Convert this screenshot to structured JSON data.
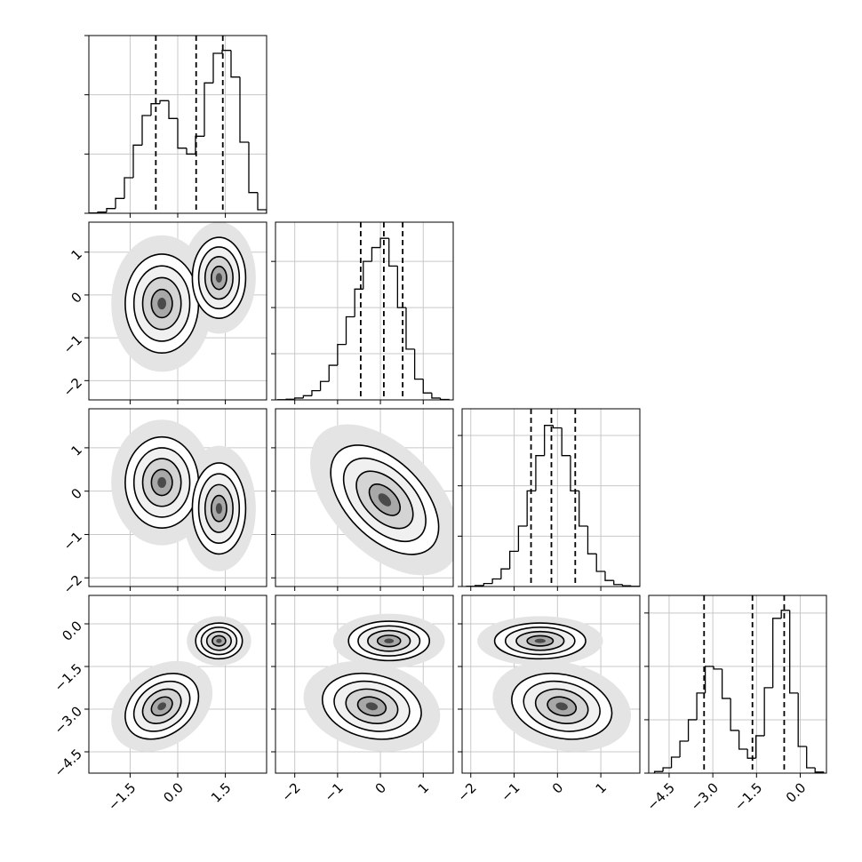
{
  "chart_data": [
    {
      "type": "histogram",
      "color": "#000000",
      "bins": [
        -2.8,
        -2.52,
        -2.24,
        -1.96,
        -1.68,
        -1.4,
        -1.12,
        -0.84,
        -0.56,
        -0.28,
        0,
        0.28,
        0.56,
        0.84,
        1.12,
        1.4,
        1.68,
        1.96,
        2.24,
        2.52,
        2.8
      ],
      "values": [
        5,
        20,
        80,
        250,
        600,
        1150,
        1650,
        1850,
        1900,
        1600,
        1100,
        1000,
        1300,
        2200,
        2700,
        2750,
        2300,
        1200,
        350,
        60
      ],
      "quantiles": [
        -0.69,
        0.58,
        1.42
      ],
      "xlim": [
        -2.8,
        2.8
      ],
      "xticks": [
        {
          "value": -1.5,
          "label": "−1.5"
        },
        {
          "value": 0,
          "label": "0.0"
        },
        {
          "value": 1.5,
          "label": "1.5"
        }
      ],
      "ylim": [
        0,
        3000
      ],
      "yticks": [
        0,
        1000,
        2000,
        3000
      ],
      "grid": true
    },
    {
      "type": "density",
      "xlim": [
        -2.8,
        2.8
      ],
      "xticks": [
        {
          "value": -1.5,
          "label": "−1.5"
        },
        {
          "value": 0,
          "label": "0.0"
        },
        {
          "value": 1.5,
          "label": "1.5"
        }
      ],
      "ylim": [
        -2.45,
        1.7
      ],
      "yticks": [
        {
          "value": -2,
          "label": "−2"
        },
        {
          "value": -1,
          "label": "−1"
        },
        0,
        1
      ],
      "clusters": [
        {
          "x": -0.5,
          "y": -0.2,
          "sx": 0.55,
          "sy": 0.55,
          "rho": 0
        },
        {
          "x": 1.3,
          "y": 0.4,
          "sx": 0.4,
          "sy": 0.45,
          "rho": 0
        }
      ],
      "grid": true
    },
    {
      "type": "histogram",
      "color": "#000000",
      "bins": [
        -2.4,
        -2.2,
        -2.0,
        -1.8,
        -1.6,
        -1.4,
        -1.2,
        -1.0,
        -0.8,
        -0.6,
        -0.4,
        -0.2,
        0,
        0.2,
        0.4,
        0.6,
        0.8,
        1.0,
        1.2,
        1.4,
        1.6
      ],
      "values": [
        5,
        15,
        40,
        90,
        200,
        400,
        750,
        1200,
        1800,
        2400,
        3000,
        3300,
        3500,
        2900,
        2000,
        1100,
        450,
        150,
        40,
        10
      ],
      "quantiles": [
        -0.46,
        0.08,
        0.52
      ],
      "xlim": [
        -2.45,
        1.7
      ],
      "xticks": [
        {
          "value": -2,
          "label": "−2"
        },
        {
          "value": -1,
          "label": "−1"
        },
        0,
        1
      ],
      "ylim": [
        0,
        3850
      ],
      "yticks": [
        0,
        1000,
        2000,
        3000
      ],
      "grid": true
    },
    {
      "type": "density",
      "xlim": [
        -2.8,
        2.8
      ],
      "xticks": [
        {
          "value": -1.5,
          "label": "−1.5"
        },
        {
          "value": 0,
          "label": "0.0"
        },
        {
          "value": 1.5,
          "label": "1.5"
        }
      ],
      "ylim": [
        -2.2,
        1.9
      ],
      "yticks": [
        {
          "value": -2,
          "label": "−2"
        },
        {
          "value": -1,
          "label": "−1"
        },
        0,
        1
      ],
      "clusters": [
        {
          "x": -0.5,
          "y": 0.2,
          "sx": 0.55,
          "sy": 0.5,
          "rho": 0
        },
        {
          "x": 1.3,
          "y": -0.4,
          "sx": 0.4,
          "sy": 0.5,
          "rho": 0
        }
      ],
      "grid": true
    },
    {
      "type": "density",
      "xlim": [
        -2.45,
        1.7
      ],
      "xticks": [
        {
          "value": -2,
          "label": "−2"
        },
        {
          "value": -1,
          "label": "−1"
        },
        0,
        1
      ],
      "ylim": [
        -2.2,
        1.9
      ],
      "yticks": [
        {
          "value": -2,
          "label": "−2"
        },
        {
          "value": -1,
          "label": "−1"
        },
        0,
        1
      ],
      "clusters": [
        {
          "x": 0.1,
          "y": -0.2,
          "sx": 0.6,
          "sy": 0.6,
          "rho": -0.5
        }
      ],
      "grid": true
    },
    {
      "type": "histogram",
      "color": "#000000",
      "bins": [
        -2.1,
        -1.9,
        -1.7,
        -1.5,
        -1.3,
        -1.1,
        -0.9,
        -0.7,
        -0.5,
        -0.3,
        -0.1,
        0.1,
        0.3,
        0.5,
        0.7,
        0.9,
        1.1,
        1.3,
        1.5,
        1.7,
        1.9
      ],
      "values": [
        5,
        20,
        60,
        150,
        350,
        700,
        1200,
        1900,
        2600,
        3200,
        3150,
        2600,
        1900,
        1200,
        650,
        300,
        120,
        40,
        15,
        5
      ],
      "quantiles": [
        -0.61,
        -0.14,
        0.41
      ],
      "xlim": [
        -2.2,
        1.9
      ],
      "xticks": [
        {
          "value": -2,
          "label": "−2"
        },
        {
          "value": -1,
          "label": "−1"
        },
        0,
        1
      ],
      "ylim": [
        0,
        3530
      ],
      "yticks": [
        0,
        1000,
        2000,
        3000
      ],
      "grid": true
    },
    {
      "type": "density",
      "xlim": [
        -2.8,
        2.8
      ],
      "xticks": [
        {
          "value": -1.5,
          "label": "−1.5"
        },
        {
          "value": 0,
          "label": "0.0"
        },
        {
          "value": 1.5,
          "label": "1.5"
        }
      ],
      "ylim": [
        -5.25,
        1.0
      ],
      "yticks": [
        {
          "value": -4.5,
          "label": "−4.5"
        },
        {
          "value": -3,
          "label": "−3.0"
        },
        {
          "value": -1.5,
          "label": "−1.5"
        },
        {
          "value": 0,
          "label": "0.0"
        }
      ],
      "clusters": [
        {
          "x": -0.5,
          "y": -2.9,
          "sx": 0.55,
          "sy": 0.55,
          "rho": 0.3
        },
        {
          "x": 1.3,
          "y": -0.6,
          "sx": 0.35,
          "sy": 0.3,
          "rho": 0
        }
      ],
      "grid": true
    },
    {
      "type": "density",
      "xlim": [
        -2.45,
        1.7
      ],
      "xticks": [
        {
          "value": -2,
          "label": "−2"
        },
        {
          "value": -1,
          "label": "−1"
        },
        0,
        1
      ],
      "ylim": [
        -5.25,
        1.0
      ],
      "yticks": [
        {
          "value": -4.5,
          "label": "−4.5"
        },
        {
          "value": -3,
          "label": "−3.0"
        },
        {
          "value": -1.5,
          "label": "−1.5"
        },
        {
          "value": 0,
          "label": "0.0"
        }
      ],
      "clusters": [
        {
          "x": 0.2,
          "y": -0.6,
          "sx": 0.45,
          "sy": 0.33,
          "rho": 0
        },
        {
          "x": -0.2,
          "y": -2.9,
          "sx": 0.55,
          "sy": 0.55,
          "rho": -0.2
        }
      ],
      "grid": true
    },
    {
      "type": "density",
      "xlim": [
        -2.2,
        1.9
      ],
      "xticks": [
        {
          "value": -2,
          "label": "−2"
        },
        {
          "value": -1,
          "label": "−1"
        },
        0,
        1
      ],
      "ylim": [
        -5.25,
        1.0
      ],
      "yticks": [
        {
          "value": -4.5,
          "label": "−4.5"
        },
        {
          "value": -3,
          "label": "−3.0"
        },
        {
          "value": -1.5,
          "label": "−1.5"
        },
        {
          "value": 0,
          "label": "0.0"
        }
      ],
      "clusters": [
        {
          "x": -0.4,
          "y": -0.6,
          "sx": 0.5,
          "sy": 0.3,
          "rho": 0
        },
        {
          "x": 0.1,
          "y": -2.9,
          "sx": 0.55,
          "sy": 0.55,
          "rho": -0.2
        }
      ],
      "grid": true
    },
    {
      "type": "histogram",
      "color": "#000000",
      "bins": [
        -5.0,
        -4.71,
        -4.42,
        -4.13,
        -3.84,
        -3.55,
        -3.26,
        -2.97,
        -2.68,
        -2.39,
        -2.1,
        -1.81,
        -1.52,
        -1.23,
        -0.94,
        -0.65,
        -0.36,
        -0.07,
        0.22,
        0.51,
        0.8
      ],
      "values": [
        30,
        100,
        300,
        600,
        1000,
        1500,
        2000,
        1950,
        1400,
        800,
        450,
        280,
        700,
        1600,
        2900,
        3050,
        1500,
        500,
        100,
        20
      ],
      "quantiles": [
        -3.3,
        -1.64,
        -0.55
      ],
      "xlim": [
        -5.2,
        0.9
      ],
      "xticks": [
        {
          "value": -4.5,
          "label": "−4.5"
        },
        {
          "value": -3,
          "label": "−3.0"
        },
        {
          "value": -1.5,
          "label": "−1.5"
        },
        {
          "value": 0,
          "label": "0.0"
        }
      ],
      "ylim": [
        0,
        3330
      ],
      "yticks": [
        0,
        1000,
        2000,
        3000
      ],
      "grid": true
    }
  ]
}
